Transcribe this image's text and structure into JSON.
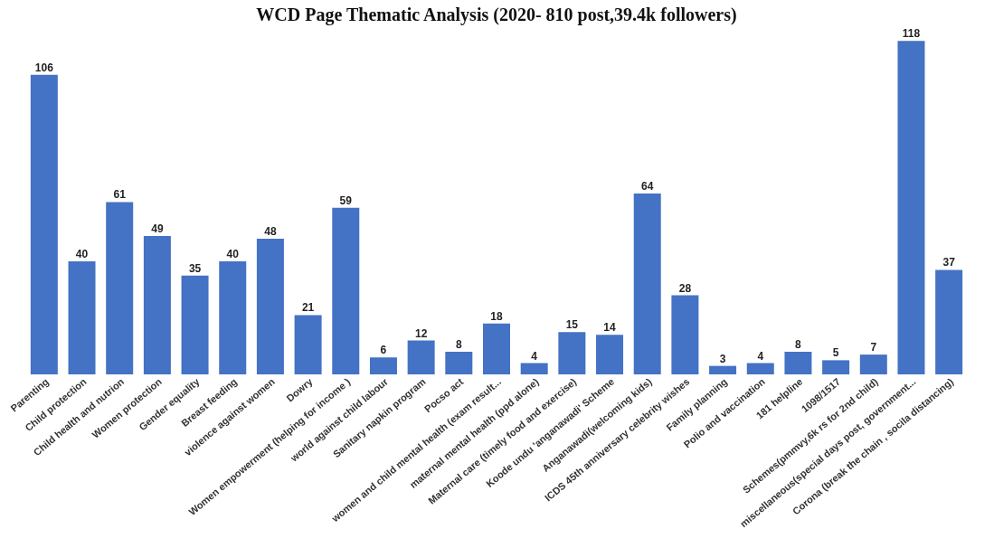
{
  "chart_data": {
    "type": "bar",
    "title": "WCD Page Thematic Analysis (2020- 810 post,39.4k followers)",
    "categories": [
      "Parenting",
      "Child protection",
      "Child health and nutrion",
      "Women protection",
      "Gender equality",
      "Breast feeding",
      "violence against women",
      "Dowry",
      "Women empowerment (helping for income )",
      "world against child labour",
      "Sanitary napkin program",
      "Pocso act",
      "women and child mental health (exam result...",
      "maternal mental health (ppd alone)",
      "Maternal care (timely food and exercise)",
      "Koode undu 'anganawadi' Scheme",
      "Anganawadi(welcoming kids)",
      "ICDS 45th anniversary celebrity wishes",
      "Family planning",
      "Polio and vaccination",
      "181 helpline",
      "1098/1517",
      "Schemes(pmmvy,6k rs for 2nd child)",
      "miscellaneous(special days post, government...",
      "Corona (break the chain , socila distancing)"
    ],
    "values": [
      106,
      40,
      61,
      49,
      35,
      40,
      48,
      21,
      59,
      6,
      12,
      8,
      18,
      4,
      15,
      14,
      64,
      28,
      3,
      4,
      8,
      5,
      7,
      118,
      37
    ],
    "color": "#4472c4",
    "data_labels": true
  }
}
